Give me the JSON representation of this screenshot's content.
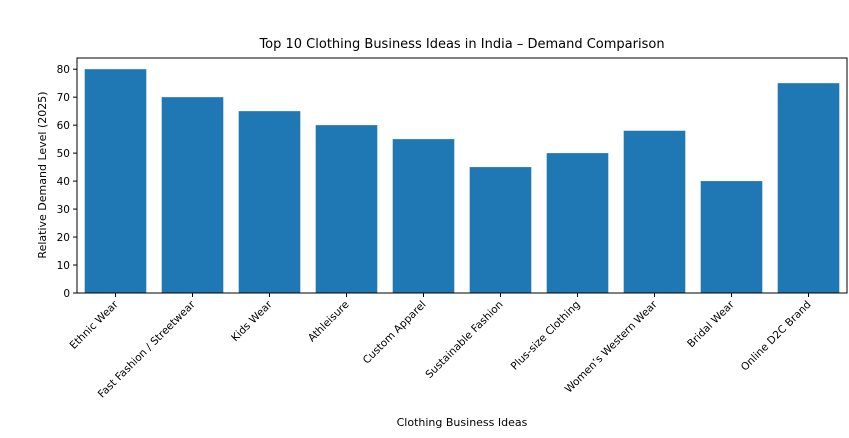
{
  "chart_data": {
    "type": "bar",
    "title": "Top 10 Clothing Business Ideas in India – Demand Comparison",
    "xlabel": "Clothing Business Ideas",
    "ylabel": "Relative Demand Level (2025)",
    "categories": [
      "Ethnic Wear",
      "Fast Fashion / Streetwear",
      "Kids Wear",
      "Athleisure",
      "Custom Apparel",
      "Sustainable Fashion",
      "Plus-size Clothing",
      "Women’s Western Wear",
      "Bridal Wear",
      "Online D2C Brand"
    ],
    "values": [
      80,
      70,
      65,
      60,
      55,
      45,
      50,
      58,
      40,
      75
    ],
    "ylim": [
      0,
      84
    ],
    "yticks": [
      0,
      10,
      20,
      30,
      40,
      50,
      60,
      70,
      80
    ],
    "grid": false,
    "bar_color": "#1f77b4"
  }
}
